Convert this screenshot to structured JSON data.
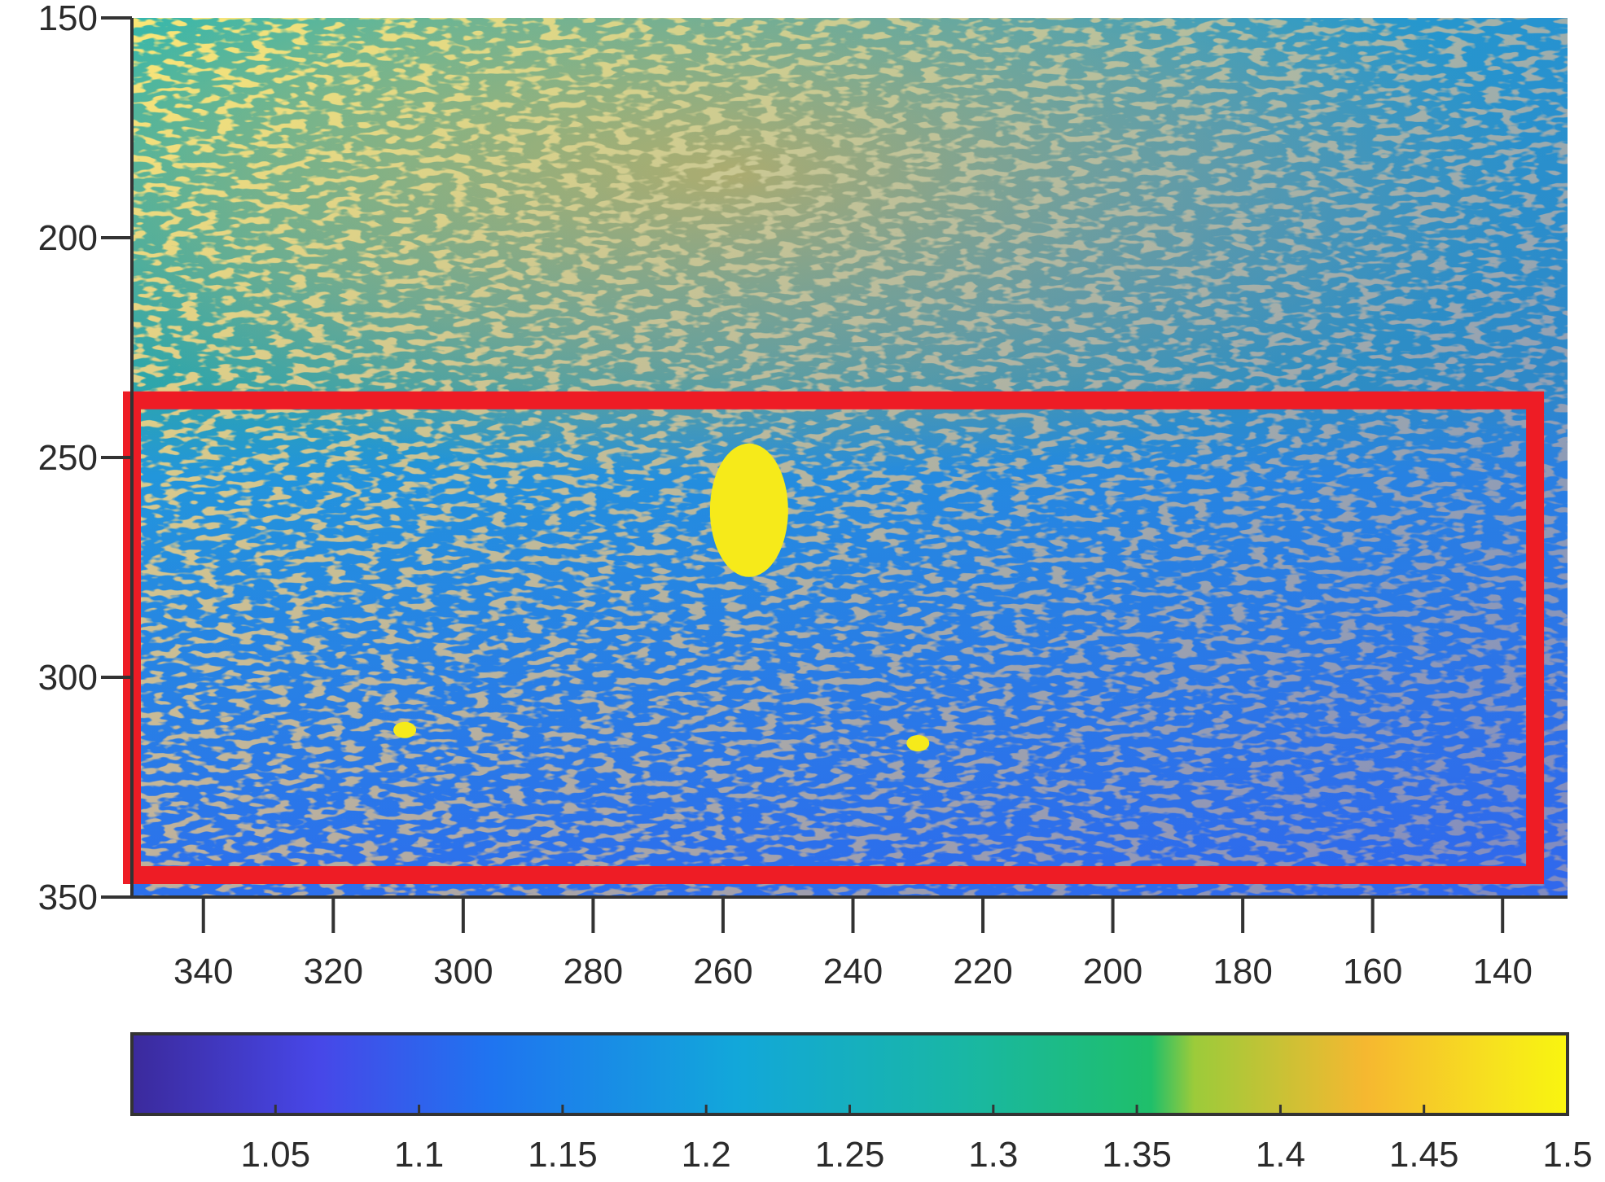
{
  "chart_data": {
    "type": "heatmap",
    "title": "",
    "xlabel": "",
    "ylabel": "",
    "x_axis": {
      "range": [
        351,
        130
      ],
      "direction": "decreasing",
      "ticks": [
        340,
        320,
        300,
        280,
        260,
        240,
        220,
        200,
        180,
        160,
        140
      ],
      "tick_labels": [
        "340",
        "320",
        "300",
        "280",
        "260",
        "240",
        "220",
        "200",
        "180",
        "160",
        "140"
      ]
    },
    "y_axis": {
      "range": [
        150,
        350
      ],
      "direction": "top-to-bottom",
      "ticks": [
        150,
        200,
        250,
        300,
        350
      ],
      "tick_labels": [
        "150",
        "200",
        "250",
        "300",
        "350"
      ]
    },
    "colorbar": {
      "orientation": "horizontal",
      "placement": "bottom",
      "range": [
        1.0,
        1.5
      ],
      "ticks": [
        1.05,
        1.1,
        1.15,
        1.2,
        1.25,
        1.3,
        1.35,
        1.4,
        1.45,
        1.5
      ],
      "tick_labels": [
        "1.05",
        "1.1",
        "1.15",
        "1.2",
        "1.25",
        "1.3",
        "1.35",
        "1.4",
        "1.45",
        "1.5"
      ],
      "colormap": "parula",
      "stops": [
        "#3b2a9c",
        "#4747e8",
        "#1f74f0",
        "#12a7da",
        "#19b7a4",
        "#1fbf6a",
        "#9ccb3a",
        "#f6b830",
        "#f7e21e",
        "#f9f50f"
      ]
    },
    "regions": [
      {
        "rows": [
          150,
          232
        ],
        "level": 1.33,
        "note_color": "upper region mixed yellow speckle"
      },
      {
        "rows": [
          232,
          350
        ],
        "level": 1.18,
        "note_color": "lower region mostly blue"
      }
    ],
    "hotspots": [
      {
        "x": 256,
        "y": 262,
        "value": 1.5
      },
      {
        "x": 309,
        "y": 312,
        "value": 1.5
      },
      {
        "x": 230,
        "y": 315,
        "value": 1.5
      }
    ],
    "highlight_box": {
      "x_range": [
        351,
        135
      ],
      "y_range": [
        237,
        345
      ],
      "color": "#ee1c25"
    },
    "grid": false,
    "legend": "none"
  }
}
